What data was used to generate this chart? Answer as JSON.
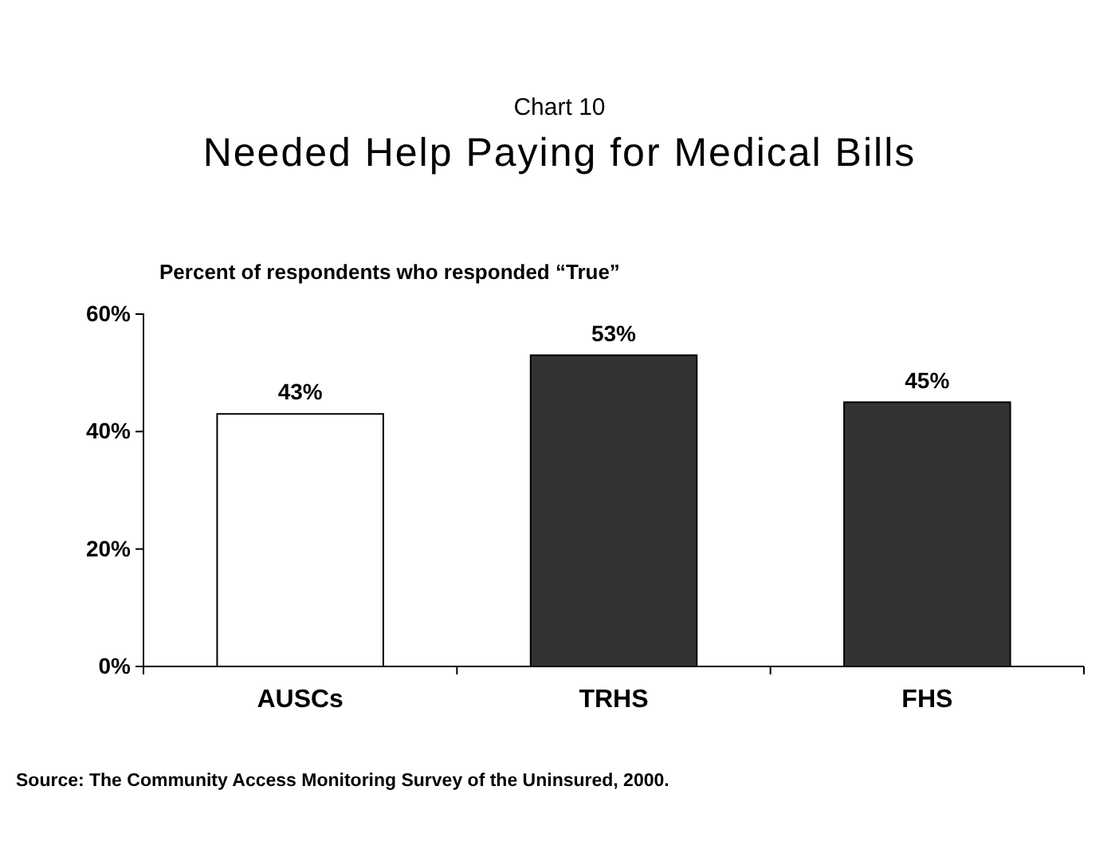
{
  "chart_data": {
    "type": "bar",
    "title": "Needed Help Paying for Medical Bills",
    "subtitle": "Chart 10",
    "ylabel": "Percent of respondents who responded “True”",
    "categories": [
      "AUSCs",
      "TRHS",
      "FHS"
    ],
    "values": [
      43,
      53,
      45
    ],
    "colors": [
      "#ffffff",
      "#333333",
      "#333333"
    ],
    "value_labels": [
      "43%",
      "53%",
      "45%"
    ],
    "ylim": [
      0,
      60
    ],
    "yticks": [
      {
        "value": 0,
        "label": "0%"
      },
      {
        "value": 20,
        "label": "20%"
      },
      {
        "value": 40,
        "label": "40%"
      },
      {
        "value": 60,
        "label": "60%"
      }
    ],
    "annotations": [
      "Source: The Community Access Monitoring Survey of the Uninsured, 2000."
    ]
  }
}
